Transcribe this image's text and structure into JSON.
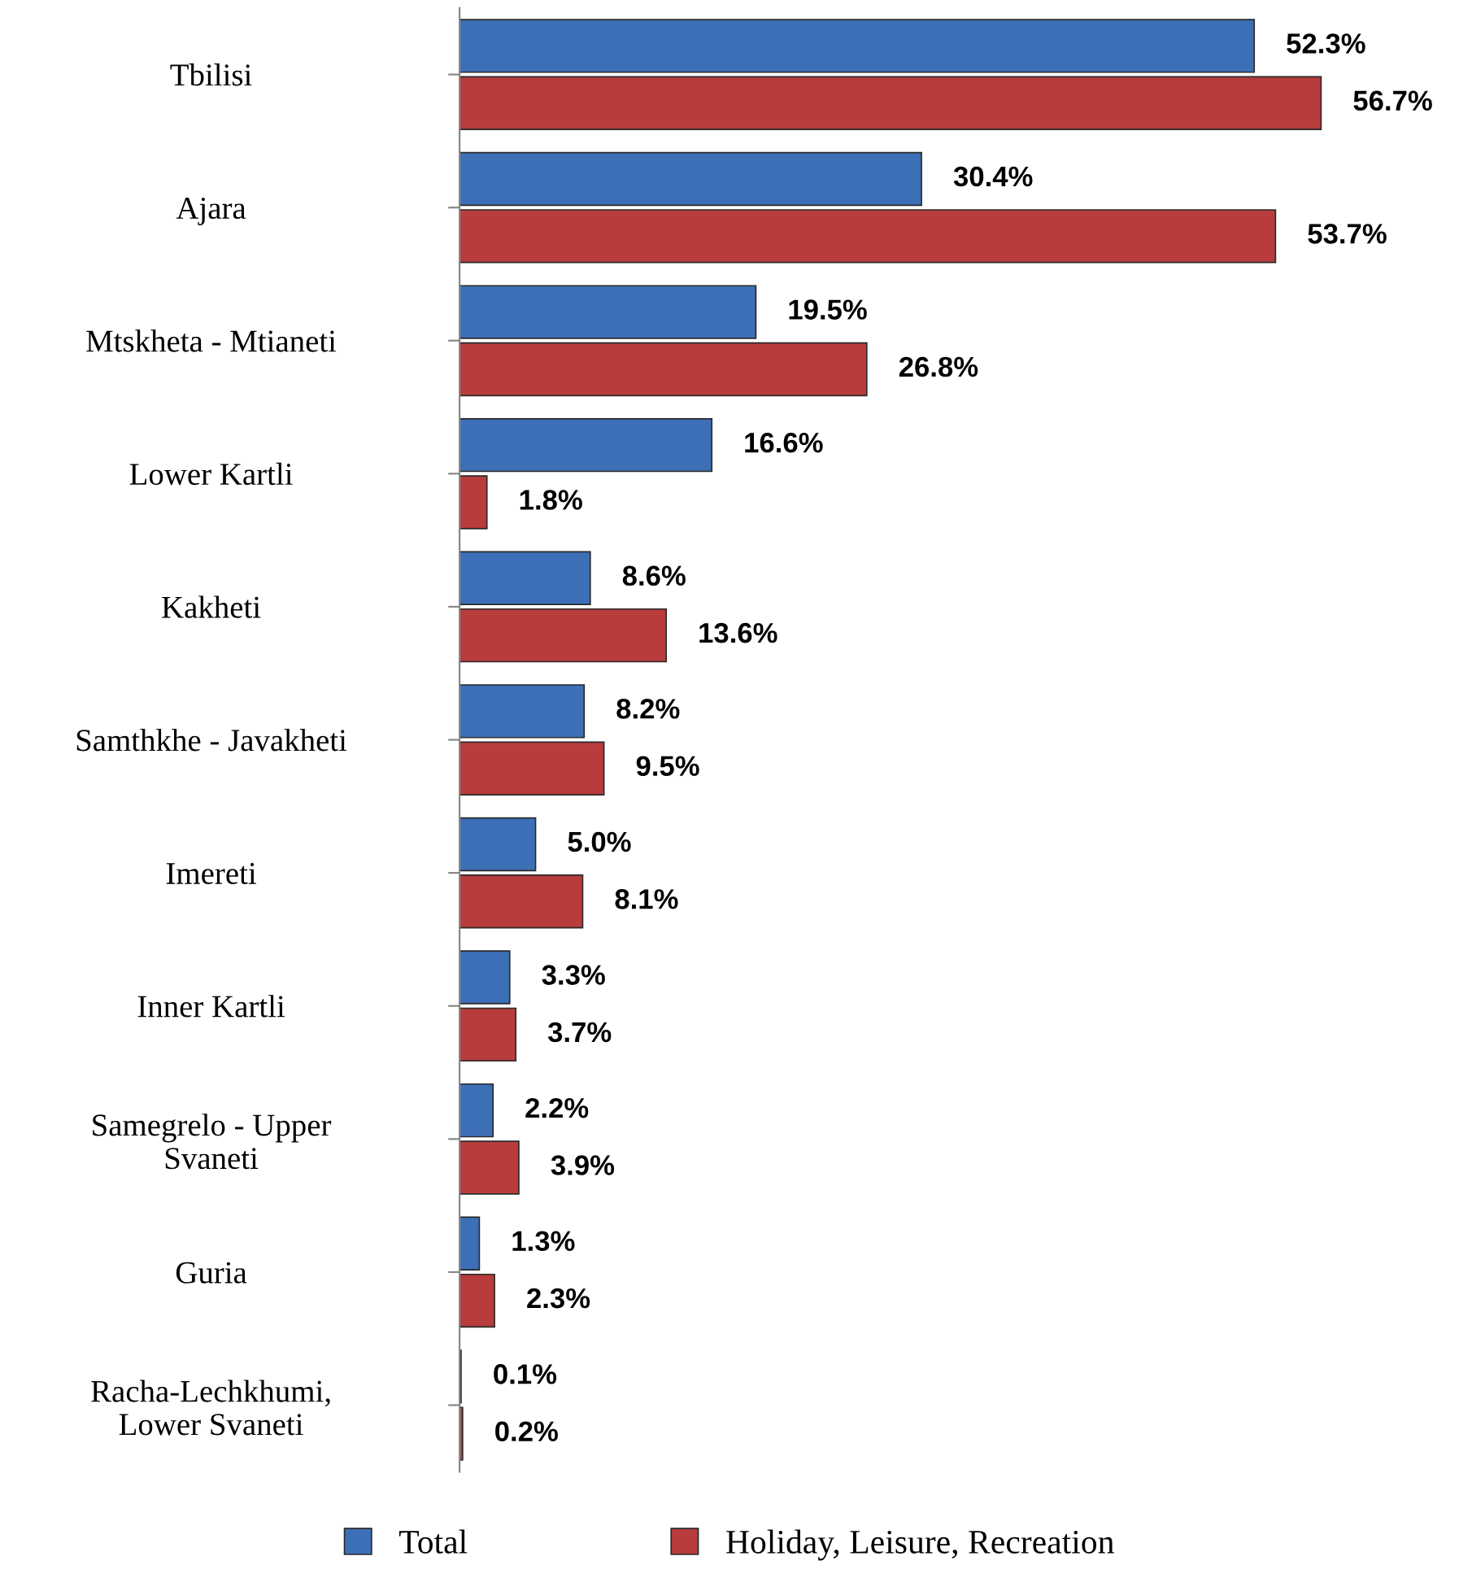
{
  "chart_data": {
    "type": "bar",
    "orientation": "horizontal",
    "categories": [
      "Tbilisi",
      "Ajara",
      "Mtskheta - Mtianeti",
      "Lower Kartli",
      "Kakheti",
      "Samthkhe - Javakheti",
      "Imereti",
      "Inner Kartli",
      "Samegrelo - Upper\nSvaneti",
      "Guria",
      "Racha-Lechkhumi,\nLower Svaneti"
    ],
    "series": [
      {
        "name": "Total",
        "color": "#3d6fb6",
        "values": [
          52.3,
          30.4,
          19.5,
          16.6,
          8.6,
          8.2,
          5.0,
          3.3,
          2.2,
          1.3,
          0.1
        ],
        "value_labels": [
          "52.3%",
          "30.4%",
          "19.5%",
          "16.6%",
          "8.6%",
          "8.2%",
          "5.0%",
          "3.3%",
          "2.2%",
          "1.3%",
          "0.1%"
        ]
      },
      {
        "name": "Holiday, Leisure, Recreation",
        "color": "#b83c3c",
        "values": [
          56.7,
          53.7,
          26.8,
          1.8,
          13.6,
          9.5,
          8.1,
          3.7,
          3.9,
          2.3,
          0.2
        ],
        "value_labels": [
          "56.7%",
          "53.7%",
          "26.8%",
          "1.8%",
          "13.6%",
          "9.5%",
          "8.1%",
          "3.7%",
          "3.9%",
          "2.3%",
          "0.2%"
        ]
      }
    ],
    "tick_labels": "y",
    "grid": false,
    "legend": "bottom"
  }
}
